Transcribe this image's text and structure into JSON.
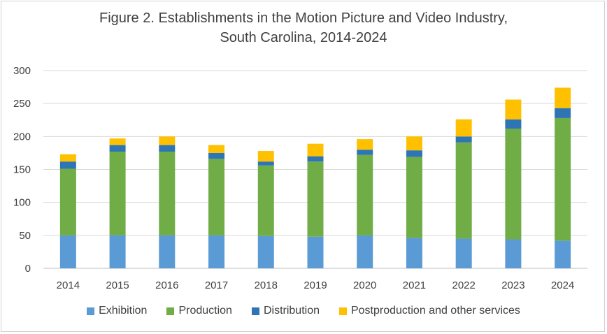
{
  "chart_data": {
    "type": "bar",
    "stacked": true,
    "title_lines": [
      "Figure 2. Establishments in the Motion Picture and Video Industry,",
      "South Carolina, 2014-2024"
    ],
    "xlabel": "",
    "ylabel": "",
    "ylim": [
      0,
      300
    ],
    "yticks": [
      0,
      50,
      100,
      150,
      200,
      250,
      300
    ],
    "grid": true,
    "legend_position": "bottom",
    "categories": [
      "2014",
      "2015",
      "2016",
      "2017",
      "2018",
      "2019",
      "2020",
      "2021",
      "2022",
      "2023",
      "2024"
    ],
    "series": [
      {
        "name": "Exhibition",
        "color": "#5b9bd5",
        "values": [
          50,
          50,
          50,
          50,
          49,
          48,
          50,
          46,
          45,
          44,
          42
        ]
      },
      {
        "name": "Production",
        "color": "#70ad47",
        "values": [
          101,
          127,
          127,
          116,
          107,
          114,
          122,
          123,
          146,
          168,
          186
        ]
      },
      {
        "name": "Distribution",
        "color": "#2e75b6",
        "values": [
          11,
          10,
          10,
          9,
          6,
          8,
          8,
          10,
          9,
          14,
          15
        ]
      },
      {
        "name": "Postproduction and other services",
        "color": "#ffc000",
        "values": [
          11,
          10,
          13,
          12,
          16,
          19,
          16,
          21,
          26,
          30,
          31
        ]
      }
    ]
  }
}
